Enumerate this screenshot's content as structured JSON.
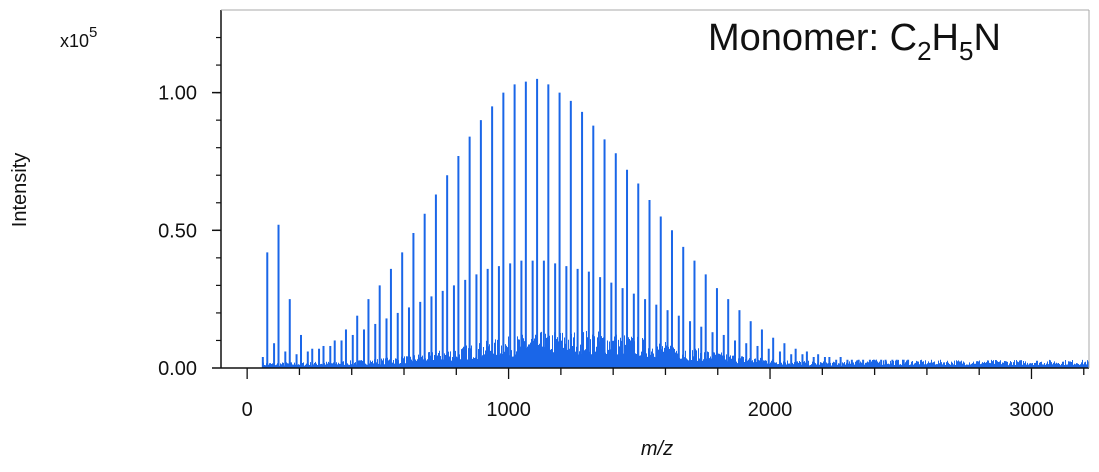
{
  "chart_data": {
    "type": "bar",
    "title": "",
    "xlabel": "m/z",
    "ylabel": "Intensity",
    "y_multiplier": {
      "base": "x10",
      "exponent": "5"
    },
    "annotation": {
      "prefix": "Monomer: C",
      "sub1": "2",
      "mid": "H",
      "sub2": "5",
      "suffix": "N"
    },
    "xlim": [
      -100,
      3220
    ],
    "ylim": [
      0,
      1.3
    ],
    "x_ticks": [
      {
        "value": 0,
        "label": "0"
      },
      {
        "value": 1000,
        "label": "1000"
      },
      {
        "value": 2000,
        "label": "2000"
      },
      {
        "value": 3000,
        "label": "3000"
      }
    ],
    "y_ticks": [
      {
        "value": 0.0,
        "label": "0.00"
      },
      {
        "value": 0.5,
        "label": "0.50"
      },
      {
        "value": 1.0,
        "label": "1.00"
      }
    ],
    "grid": false,
    "legend": "none",
    "color": "#1a66e8",
    "series": [
      {
        "x": [
          60,
          77,
          103,
          120,
          146,
          163,
          189,
          206,
          232,
          249,
          275,
          292,
          318,
          335,
          361,
          378,
          404,
          421,
          447,
          464,
          490,
          507,
          533,
          550,
          576,
          593,
          619,
          636,
          662,
          679,
          705,
          722,
          748,
          765,
          791,
          808,
          834,
          851,
          877,
          894,
          920,
          937,
          963,
          980,
          1006,
          1023,
          1049,
          1066,
          1092,
          1109,
          1135,
          1152,
          1178,
          1195,
          1221,
          1238,
          1264,
          1281,
          1307,
          1324,
          1350,
          1367,
          1393,
          1410,
          1436,
          1453,
          1479,
          1496,
          1522,
          1539,
          1565,
          1582,
          1608,
          1625,
          1651,
          1668,
          1694,
          1711,
          1737,
          1754,
          1780,
          1797,
          1823,
          1840,
          1866,
          1883,
          1909,
          1926,
          1952,
          1969,
          1995,
          2012,
          2038,
          2055,
          2081,
          2098,
          2124,
          2141,
          2167,
          2184,
          2210,
          2227,
          2253,
          2270,
          2296,
          2313,
          2339,
          2356,
          2382,
          2399,
          2425,
          2442,
          2468,
          2485,
          2511,
          2528
        ],
        "values": [
          0.04,
          0.42,
          0.09,
          0.52,
          0.06,
          0.25,
          0.05,
          0.12,
          0.06,
          0.07,
          0.07,
          0.08,
          0.08,
          0.1,
          0.1,
          0.14,
          0.12,
          0.19,
          0.14,
          0.25,
          0.16,
          0.3,
          0.18,
          0.36,
          0.2,
          0.42,
          0.22,
          0.49,
          0.24,
          0.56,
          0.26,
          0.63,
          0.28,
          0.7,
          0.3,
          0.77,
          0.32,
          0.84,
          0.34,
          0.9,
          0.36,
          0.95,
          0.37,
          1.0,
          0.38,
          1.03,
          0.39,
          1.04,
          0.39,
          1.05,
          0.39,
          1.03,
          0.38,
          1.0,
          0.37,
          0.97,
          0.36,
          0.93,
          0.35,
          0.88,
          0.33,
          0.83,
          0.31,
          0.78,
          0.29,
          0.72,
          0.27,
          0.67,
          0.25,
          0.61,
          0.23,
          0.55,
          0.21,
          0.5,
          0.19,
          0.44,
          0.17,
          0.39,
          0.15,
          0.34,
          0.13,
          0.29,
          0.12,
          0.25,
          0.1,
          0.21,
          0.09,
          0.17,
          0.08,
          0.14,
          0.07,
          0.11,
          0.06,
          0.09,
          0.05,
          0.07,
          0.05,
          0.06,
          0.04,
          0.05,
          0.04,
          0.04,
          0.03,
          0.04,
          0.03,
          0.03,
          0.03,
          0.03,
          0.03,
          0.03,
          0.03,
          0.03,
          0.03,
          0.03,
          0.03,
          0.03
        ]
      }
    ]
  }
}
